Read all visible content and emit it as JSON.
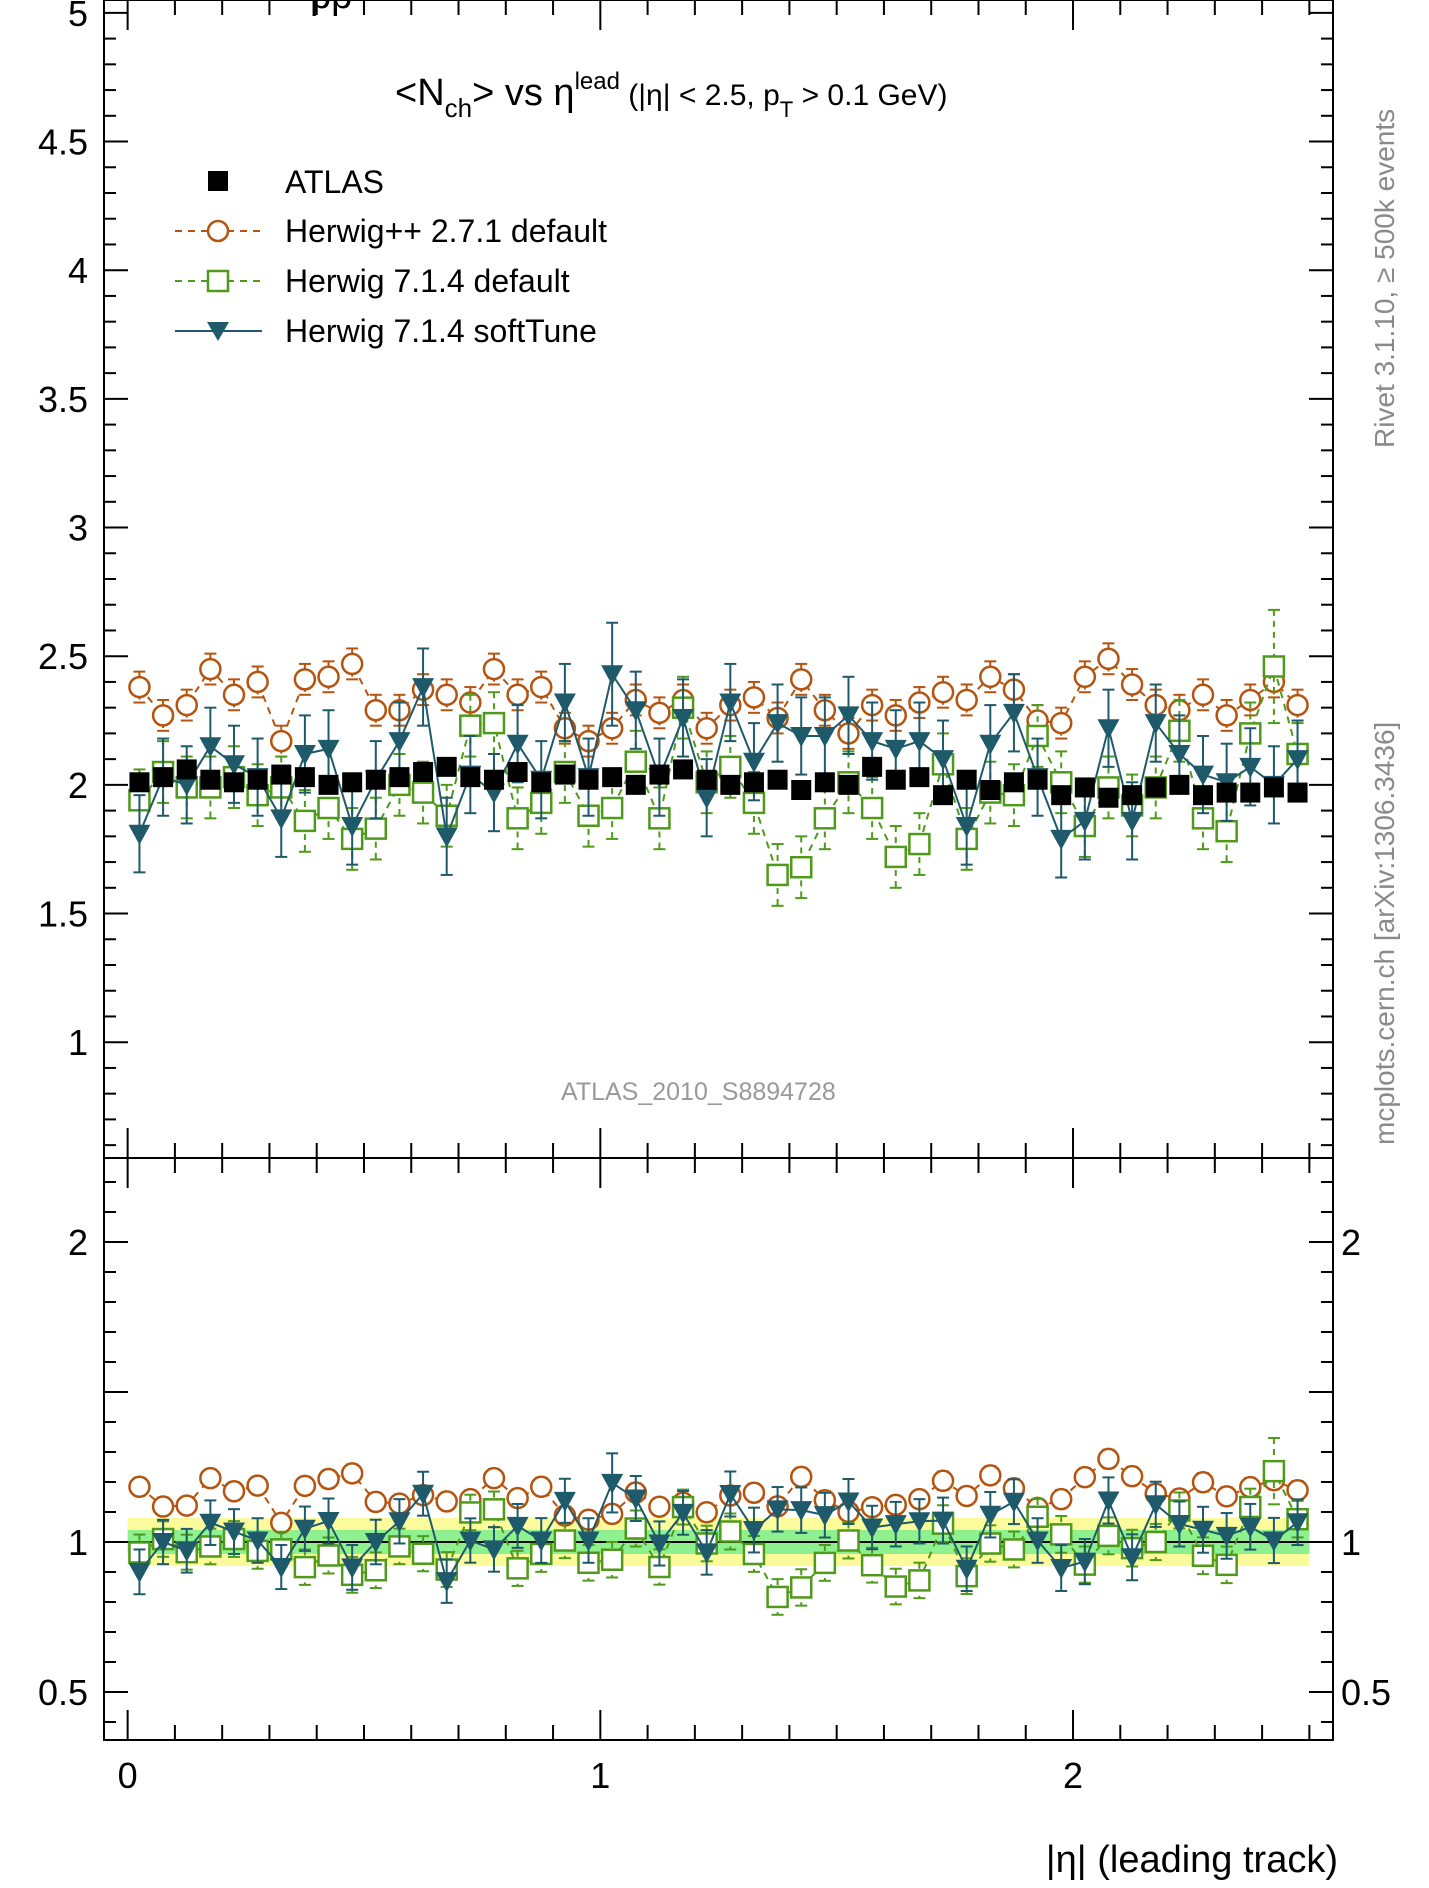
{
  "chart_data": {
    "type": "scatter",
    "title": "<N_ch> vs η^lead (|η| < 2.5, p_T > 0.1 GeV)",
    "title_parts": {
      "pre": "<N",
      "sub1": "ch",
      "mid": "> vs η",
      "sup": "lead",
      "post": " (|η| < 2.5, p",
      "sub2": "T",
      "tail": " > 0.1 GeV)"
    },
    "top_clipped_title": "pp",
    "xlabel": "|η| (leading track)",
    "ylabel": "",
    "analysis_label": "ATLAS_2010_S8894728",
    "side_label": "mcplots.cern.ch [arXiv:1306.3436]",
    "side_label_top": "Rivet 3.1.10, ≥ 500k events",
    "colors": {
      "atlas": "#000000",
      "herwigpp": "#b5540f",
      "herwig7_default": "#4f9a1a",
      "herwig7_softtune": "#1f5a6b",
      "band_inner": "#8ff08f",
      "band_outer": "#fbfb9b"
    },
    "main_panel": {
      "ylim": [
        0.55,
        5.05
      ],
      "yticks": [
        {
          "v": 1,
          "label": "1"
        },
        {
          "v": 1.5,
          "label": "1.5"
        },
        {
          "v": 2,
          "label": "2"
        },
        {
          "v": 2.5,
          "label": "2.5"
        },
        {
          "v": 3,
          "label": "3"
        },
        {
          "v": 3.5,
          "label": "3.5"
        },
        {
          "v": 4,
          "label": "4"
        },
        {
          "v": 4.5,
          "label": "4.5"
        },
        {
          "v": 5,
          "label": "5"
        }
      ]
    },
    "ratio_panel": {
      "ylim": [
        0.34,
        2.28
      ],
      "yticks": [
        {
          "v": 0.5,
          "label": "0.5"
        },
        {
          "v": 1,
          "label": "1"
        },
        {
          "v": 2,
          "label": "2"
        }
      ]
    },
    "xlim": [
      -0.05,
      2.55
    ],
    "xticks": [
      {
        "v": 0,
        "label": "0"
      },
      {
        "v": 1,
        "label": "1"
      },
      {
        "v": 2,
        "label": "2"
      }
    ],
    "x": [
      0.025,
      0.075,
      0.125,
      0.175,
      0.225,
      0.275,
      0.325,
      0.375,
      0.425,
      0.475,
      0.525,
      0.575,
      0.625,
      0.675,
      0.725,
      0.775,
      0.825,
      0.875,
      0.925,
      0.975,
      1.025,
      1.075,
      1.125,
      1.175,
      1.225,
      1.275,
      1.325,
      1.375,
      1.425,
      1.475,
      1.525,
      1.575,
      1.625,
      1.675,
      1.725,
      1.775,
      1.825,
      1.875,
      1.925,
      1.975,
      2.025,
      2.075,
      2.125,
      2.175,
      2.225,
      2.275,
      2.325,
      2.375,
      2.425,
      2.475
    ],
    "series": [
      {
        "name": "ATLAS",
        "marker": "filled-square",
        "y": [
          2.01,
          2.03,
          2.06,
          2.02,
          2.01,
          2.02,
          2.04,
          2.03,
          2.0,
          2.01,
          2.02,
          2.03,
          2.05,
          2.07,
          2.03,
          2.02,
          2.05,
          2.01,
          2.04,
          2.02,
          2.03,
          2.0,
          2.04,
          2.06,
          2.02,
          2.0,
          2.01,
          2.02,
          1.98,
          2.01,
          2.0,
          2.07,
          2.02,
          2.03,
          1.96,
          2.02,
          1.98,
          2.01,
          2.02,
          1.96,
          1.99,
          1.95,
          1.96,
          1.99,
          2.0,
          1.96,
          1.97,
          1.97,
          1.99,
          1.97
        ],
        "err": [
          0.03,
          0.03,
          0.03,
          0.03,
          0.03,
          0.03,
          0.03,
          0.03,
          0.03,
          0.03,
          0.03,
          0.03,
          0.03,
          0.03,
          0.03,
          0.03,
          0.03,
          0.03,
          0.03,
          0.03,
          0.03,
          0.03,
          0.03,
          0.03,
          0.03,
          0.03,
          0.03,
          0.03,
          0.03,
          0.03,
          0.03,
          0.03,
          0.03,
          0.03,
          0.03,
          0.03,
          0.03,
          0.03,
          0.03,
          0.03,
          0.03,
          0.03,
          0.03,
          0.03,
          0.03,
          0.03,
          0.03,
          0.03,
          0.03,
          0.03
        ]
      },
      {
        "name": "Herwig++ 2.7.1 default",
        "marker": "open-circle",
        "y": [
          2.38,
          2.27,
          2.31,
          2.45,
          2.35,
          2.4,
          2.17,
          2.41,
          2.42,
          2.47,
          2.29,
          2.29,
          2.37,
          2.35,
          2.32,
          2.45,
          2.35,
          2.38,
          2.22,
          2.17,
          2.22,
          2.33,
          2.28,
          2.33,
          2.22,
          2.31,
          2.34,
          2.26,
          2.41,
          2.29,
          2.2,
          2.31,
          2.27,
          2.32,
          2.36,
          2.33,
          2.42,
          2.37,
          2.25,
          2.24,
          2.42,
          2.49,
          2.39,
          2.31,
          2.29,
          2.35,
          2.27,
          2.33,
          2.4,
          2.31
        ],
        "err": [
          0.06,
          0.06,
          0.06,
          0.06,
          0.06,
          0.06,
          0.06,
          0.06,
          0.06,
          0.06,
          0.06,
          0.06,
          0.06,
          0.06,
          0.06,
          0.06,
          0.06,
          0.06,
          0.06,
          0.06,
          0.06,
          0.06,
          0.06,
          0.06,
          0.06,
          0.06,
          0.06,
          0.06,
          0.06,
          0.06,
          0.06,
          0.06,
          0.06,
          0.06,
          0.06,
          0.06,
          0.06,
          0.06,
          0.06,
          0.06,
          0.06,
          0.06,
          0.06,
          0.06,
          0.06,
          0.06,
          0.06,
          0.06,
          0.06,
          0.06
        ]
      },
      {
        "name": "Herwig 7.1.4 default",
        "marker": "open-square",
        "y": [
          1.94,
          2.05,
          1.99,
          1.99,
          2.03,
          1.96,
          1.99,
          1.86,
          1.91,
          1.79,
          1.83,
          2.0,
          1.97,
          1.88,
          2.23,
          2.24,
          1.87,
          1.93,
          2.05,
          1.88,
          1.91,
          2.09,
          1.87,
          2.3,
          2.01,
          2.07,
          1.93,
          1.65,
          1.68,
          1.87,
          2.01,
          1.91,
          1.72,
          1.77,
          2.08,
          1.79,
          1.97,
          1.96,
          2.19,
          2.01,
          1.84,
          1.99,
          1.92,
          1.99,
          2.21,
          1.87,
          1.82,
          2.2,
          2.46,
          2.12
        ],
        "err": [
          0.12,
          0.12,
          0.12,
          0.12,
          0.12,
          0.12,
          0.12,
          0.12,
          0.12,
          0.12,
          0.12,
          0.12,
          0.12,
          0.12,
          0.12,
          0.12,
          0.12,
          0.12,
          0.12,
          0.12,
          0.12,
          0.12,
          0.12,
          0.12,
          0.12,
          0.12,
          0.12,
          0.12,
          0.12,
          0.12,
          0.12,
          0.12,
          0.12,
          0.12,
          0.12,
          0.12,
          0.12,
          0.12,
          0.12,
          0.12,
          0.12,
          0.12,
          0.12,
          0.12,
          0.12,
          0.12,
          0.12,
          0.12,
          0.22,
          0.12
        ]
      },
      {
        "name": "Herwig 7.1.4 softTune",
        "marker": "filled-triangle-down",
        "y": [
          1.81,
          2.03,
          2.0,
          2.15,
          2.08,
          2.03,
          1.87,
          2.12,
          2.14,
          1.84,
          2.02,
          2.17,
          2.38,
          1.8,
          2.04,
          1.97,
          2.16,
          2.02,
          2.32,
          2.03,
          2.43,
          2.29,
          2.03,
          2.26,
          1.95,
          2.32,
          2.09,
          2.24,
          2.19,
          2.19,
          2.27,
          2.17,
          2.14,
          2.17,
          2.1,
          1.84,
          2.16,
          2.28,
          2.03,
          1.79,
          1.86,
          2.22,
          1.86,
          2.24,
          2.12,
          2.04,
          2.01,
          2.07,
          2.0,
          2.1
        ],
        "err": [
          0.15,
          0.15,
          0.15,
          0.15,
          0.15,
          0.15,
          0.15,
          0.15,
          0.15,
          0.15,
          0.15,
          0.15,
          0.15,
          0.15,
          0.15,
          0.15,
          0.15,
          0.15,
          0.15,
          0.15,
          0.2,
          0.15,
          0.15,
          0.15,
          0.15,
          0.15,
          0.15,
          0.15,
          0.15,
          0.15,
          0.15,
          0.15,
          0.15,
          0.15,
          0.15,
          0.15,
          0.15,
          0.15,
          0.15,
          0.15,
          0.15,
          0.15,
          0.15,
          0.15,
          0.15,
          0.15,
          0.15,
          0.15,
          0.15,
          0.15
        ]
      }
    ],
    "ratio_band": {
      "inner": [
        0.96,
        1.04
      ],
      "outer": [
        0.92,
        1.08
      ]
    },
    "legend": {
      "placement": "top-left",
      "entries": [
        {
          "label": "ATLAS",
          "style": "marker"
        },
        {
          "label": "Herwig++ 2.7.1 default",
          "style": "dashed"
        },
        {
          "label": "Herwig 7.1.4 default",
          "style": "dashed"
        },
        {
          "label": "Herwig 7.1.4 softTune",
          "style": "solid"
        }
      ]
    }
  }
}
